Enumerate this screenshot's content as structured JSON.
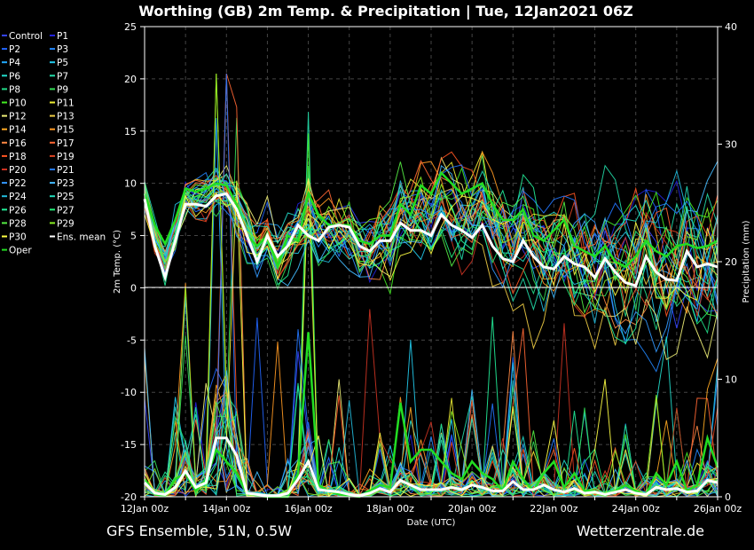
{
  "chart_data": {
    "type": "line",
    "title": "Worthing  (GB)  2m Temp. & Precipitation | Tue, 12Jan2021 06Z",
    "xlabel": "Date (UTC)",
    "ylabel_left": "2m Temp. (°C)",
    "ylabel_right": "Precipitation (mm)",
    "ylim_left": [
      -20,
      25
    ],
    "ylim_right": [
      0,
      40
    ],
    "yticks_left": [
      25,
      20,
      15,
      10,
      5,
      0,
      -5,
      -10,
      -15,
      -20
    ],
    "yticks_right": [
      40,
      30,
      20,
      10,
      0
    ],
    "xlim": [
      0,
      14
    ],
    "x_tick_labels": [
      "12Jan 00z",
      "14Jan 00z",
      "16Jan 00z",
      "18Jan 00z",
      "20Jan 00z",
      "22Jan 00z",
      "24Jan 00z",
      "26Jan 00z"
    ],
    "grid": true,
    "legend_position": "left",
    "footer_left": "GFS Ensemble, 51N, 0.5W",
    "footer_right": "Wetterzentrale.de",
    "series": [
      {
        "name": "Control",
        "color": "#3344ff"
      },
      {
        "name": "P1",
        "color": "#2222dd"
      },
      {
        "name": "P2",
        "color": "#2266ff"
      },
      {
        "name": "P3",
        "color": "#2288ff"
      },
      {
        "name": "P4",
        "color": "#22aaff"
      },
      {
        "name": "P5",
        "color": "#22ccee"
      },
      {
        "name": "P6",
        "color": "#22ddcc"
      },
      {
        "name": "P7",
        "color": "#22ddaa"
      },
      {
        "name": "P8",
        "color": "#22dd88"
      },
      {
        "name": "P9",
        "color": "#33dd55"
      },
      {
        "name": "P10",
        "color": "#44ee22"
      },
      {
        "name": "P11",
        "color": "#eeee33"
      },
      {
        "name": "P12",
        "color": "#eeee77"
      },
      {
        "name": "P13",
        "color": "#eecc44"
      },
      {
        "name": "P14",
        "color": "#ffaa22"
      },
      {
        "name": "P15",
        "color": "#ff9922"
      },
      {
        "name": "P16",
        "color": "#ff8844"
      },
      {
        "name": "P17",
        "color": "#ff6633"
      },
      {
        "name": "P18",
        "color": "#ff5522"
      },
      {
        "name": "P19",
        "color": "#dd4422"
      },
      {
        "name": "P20",
        "color": "#cc3322"
      },
      {
        "name": "P21",
        "color": "#2277ff"
      },
      {
        "name": "P22",
        "color": "#3399ff"
      },
      {
        "name": "P23",
        "color": "#44bbff"
      },
      {
        "name": "P24",
        "color": "#22bbdd"
      },
      {
        "name": "P25",
        "color": "#22ddbb"
      },
      {
        "name": "P26",
        "color": "#22ee99"
      },
      {
        "name": "P27",
        "color": "#22ee77"
      },
      {
        "name": "P28",
        "color": "#55ee44"
      },
      {
        "name": "P29",
        "color": "#88ee22"
      },
      {
        "name": "P30",
        "color": "#ffff44"
      },
      {
        "name": "Ens. mean",
        "color": "#ffffff"
      },
      {
        "name": "Oper",
        "color": "#22dd22"
      }
    ],
    "temperature_x": [
      0,
      0.25,
      0.5,
      0.75,
      1,
      1.25,
      1.5,
      1.75,
      2,
      2.25,
      2.5,
      2.75,
      3,
      3.25,
      3.5,
      3.75,
      4,
      4.25,
      4.5,
      4.75,
      5,
      5.25,
      5.5,
      5.75,
      6,
      6.25,
      6.5,
      6.75,
      7,
      7.25,
      7.5,
      7.75,
      8,
      8.25,
      8.5,
      8.75,
      9,
      9.25,
      9.5,
      9.75,
      10,
      10.25,
      10.5,
      10.75,
      11,
      11.25,
      11.5,
      11.75,
      12,
      12.25,
      12.5,
      12.75,
      13,
      13.25,
      13.5,
      13.75,
      14
    ],
    "ens_mean_temp": [
      8.5,
      4,
      1,
      4.5,
      8,
      8,
      7.8,
      8.8,
      9,
      7.5,
      5,
      2.5,
      5,
      3,
      4,
      6,
      5,
      4.5,
      5.8,
      6,
      5.8,
      4,
      3.5,
      4.5,
      4.5,
      6.2,
      5.5,
      5.5,
      5,
      7,
      6,
      5.5,
      4.8,
      6,
      4,
      2.8,
      2.5,
      4.5,
      3,
      2,
      1.8,
      3,
      2.3,
      2,
      1,
      2.8,
      1.5,
      0.5,
      0.2,
      3,
      1.5,
      0.8,
      0.7,
      3.5,
      2,
      2.3,
      2
    ],
    "oper_temp": [
      9,
      6,
      4.2,
      6.5,
      9.5,
      9.2,
      9.5,
      10,
      9.8,
      8,
      5,
      4,
      5,
      2,
      5,
      4.5,
      9,
      7,
      6,
      6,
      6,
      4.5,
      4.2,
      5,
      5,
      8,
      7,
      9.8,
      9,
      11,
      10,
      9,
      9.5,
      10,
      8,
      6.5,
      6.5,
      7.5,
      5,
      4.5,
      5.5,
      6.5,
      4,
      3.5,
      3,
      4,
      2.5,
      2,
      3,
      4.5,
      3.5,
      3,
      4,
      4.2,
      3.8,
      4,
      4.5
    ],
    "precipitation_x": [
      0,
      0.25,
      0.5,
      0.75,
      1,
      1.25,
      1.5,
      1.75,
      2,
      2.25,
      2.5,
      2.75,
      3,
      3.25,
      3.5,
      3.75,
      4,
      4.25,
      4.5,
      4.75,
      5,
      5.25,
      5.5,
      5.75,
      6,
      6.25,
      6.5,
      6.75,
      7,
      7.25,
      7.5,
      7.75,
      8,
      8.25,
      8.5,
      8.75,
      9,
      9.25,
      9.5,
      9.75,
      10,
      10.25,
      10.5,
      10.75,
      11,
      11.25,
      11.5,
      11.75,
      12,
      12.25,
      12.5,
      12.75,
      13,
      13.25,
      13.5,
      13.75,
      14
    ],
    "ens_mean_precip": [
      1.2,
      0.3,
      0.2,
      0.8,
      2.2,
      0.8,
      1.2,
      5,
      5,
      3.5,
      0.3,
      0.2,
      0.1,
      0.1,
      0.3,
      1.5,
      3,
      0.6,
      0.5,
      0.4,
      0.2,
      0.1,
      0.3,
      0.7,
      0.4,
      1.4,
      1,
      0.6,
      0.6,
      0.6,
      0.8,
      0.6,
      1,
      0.8,
      0.5,
      0.5,
      1.3,
      0.6,
      0.6,
      1,
      0.6,
      0.4,
      0.7,
      0.3,
      0.4,
      0.2,
      0.4,
      0.6,
      0.3,
      0.2,
      0.8,
      0.6,
      0.7,
      0.4,
      0.5,
      1.4,
      1.2
    ],
    "oper_precip": [
      1.5,
      0.2,
      0.1,
      1.5,
      2,
      0.5,
      1.5,
      4,
      3,
      2,
      0.3,
      0.1,
      0,
      0,
      0,
      2,
      14,
      1,
      0.5,
      0.2,
      0.1,
      0,
      0.5,
      1,
      0.8,
      8,
      3,
      4,
      4,
      3,
      2,
      1.5,
      3,
      2,
      1.5,
      0.5,
      3,
      1.5,
      0.5,
      2,
      3,
      0.8,
      2,
      0.5,
      0.5,
      0.1,
      0.5,
      1,
      0.5,
      0.2,
      2,
      1,
      3,
      0.5,
      1,
      5,
      2.5
    ]
  }
}
